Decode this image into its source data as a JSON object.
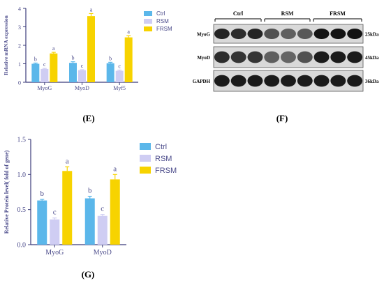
{
  "colors": {
    "ctrl": "#5bb7ea",
    "rsm": "#cfcdf3",
    "frsm": "#f7d300",
    "axis": "#3b3b7a"
  },
  "panels": {
    "e": "(E)",
    "f": "(F)",
    "g": "(G)"
  },
  "chart_data": [
    {
      "type": "bar",
      "ylabel": "Relative mRNA expression",
      "categories": [
        "MyoG",
        "MyoD",
        "Myf5"
      ],
      "ylim": [
        0,
        4
      ],
      "yticks": [
        "0",
        "1",
        "2",
        "3",
        "4"
      ],
      "series": [
        {
          "name": "Ctrl",
          "values": [
            1.0,
            1.05,
            1.03
          ],
          "errors": [
            0.04,
            0.06,
            0.05
          ],
          "letters": [
            "b",
            "b",
            "b"
          ]
        },
        {
          "name": "RSM",
          "values": [
            0.72,
            0.65,
            0.62
          ],
          "errors": [
            0.03,
            0.03,
            0.04
          ],
          "letters": [
            "c",
            "c",
            "c"
          ]
        },
        {
          "name": "FRSM",
          "values": [
            1.56,
            3.58,
            2.43
          ],
          "errors": [
            0.06,
            0.14,
            0.09
          ],
          "letters": [
            "a",
            "a",
            "a"
          ]
        }
      ],
      "legend": "right"
    },
    {
      "type": "bar",
      "ylabel": "Relative Protein level(  fold of gene)",
      "categories": [
        "MyoG",
        "MyoD"
      ],
      "ylim": [
        0,
        1.5
      ],
      "yticks": [
        "0.0",
        "0.5",
        "1.0",
        "1.5"
      ],
      "series": [
        {
          "name": "Ctrl",
          "values": [
            0.63,
            0.66
          ],
          "errors": [
            0.015,
            0.03
          ],
          "letters": [
            "b",
            "b"
          ]
        },
        {
          "name": "RSM",
          "values": [
            0.36,
            0.41
          ],
          "errors": [
            0.02,
            0.02
          ],
          "letters": [
            "c",
            "c"
          ]
        },
        {
          "name": "FRSM",
          "values": [
            1.05,
            0.93
          ],
          "errors": [
            0.06,
            0.07
          ],
          "letters": [
            "a",
            "a"
          ]
        }
      ],
      "legend": "right"
    }
  ],
  "blot": {
    "groups": [
      "Ctrl",
      "RSM",
      "FRSM"
    ],
    "rows": [
      {
        "name": "MyoG",
        "size": "25kDa",
        "intensity": [
          0.85,
          0.8,
          0.85,
          0.55,
          0.45,
          0.5,
          0.95,
          0.95,
          0.95
        ]
      },
      {
        "name": "MyoD",
        "size": "45kDa",
        "intensity": [
          0.8,
          0.75,
          0.75,
          0.45,
          0.4,
          0.55,
          0.9,
          0.9,
          0.9
        ]
      },
      {
        "name": "GAPDH",
        "size": "36kDa",
        "intensity": [
          0.9,
          0.9,
          0.9,
          0.9,
          0.9,
          0.9,
          0.9,
          0.9,
          0.9
        ]
      }
    ]
  }
}
